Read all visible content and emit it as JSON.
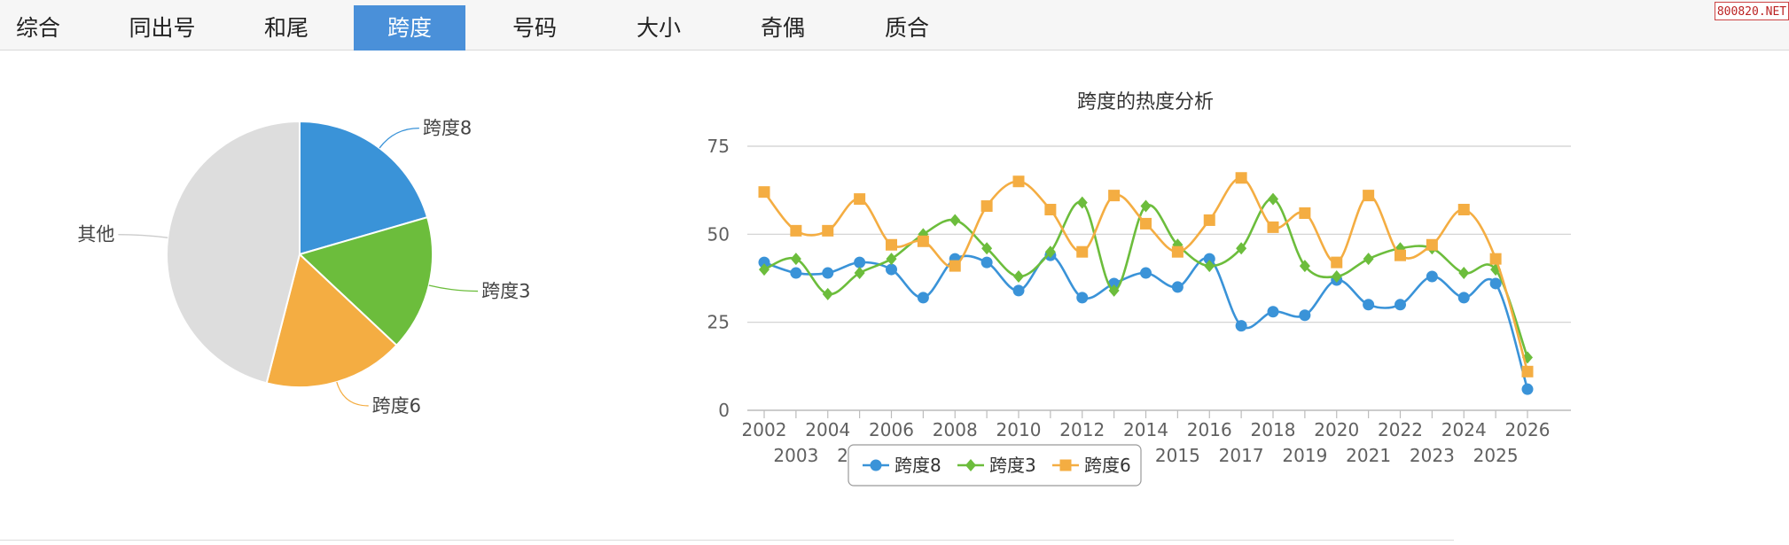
{
  "tabs": [
    {
      "label": "综合",
      "active": false
    },
    {
      "label": "同出号",
      "active": false
    },
    {
      "label": "和尾",
      "active": false
    },
    {
      "label": "跨度",
      "active": true
    },
    {
      "label": "号码",
      "active": false
    },
    {
      "label": "大小",
      "active": false
    },
    {
      "label": "奇偶",
      "active": false
    },
    {
      "label": "质合",
      "active": false
    }
  ],
  "watermark": "800820.NET",
  "colors": {
    "series1": "#3a93d8",
    "series2": "#6cbd3c",
    "series3": "#f4ad42",
    "other": "#dddddd",
    "tab_active": "#4a90d9"
  },
  "chart_data": [
    {
      "type": "pie",
      "slices": [
        {
          "label": "跨度8",
          "value": 20.5
        },
        {
          "label": "跨度3",
          "value": 16.5
        },
        {
          "label": "跨度6",
          "value": 17
        },
        {
          "label": "其他",
          "value": 46
        }
      ]
    },
    {
      "type": "line",
      "title": "跨度的热度分析",
      "x": [
        "2002",
        "2003",
        "2004",
        "2005",
        "2006",
        "2007",
        "2008",
        "2009",
        "2010",
        "2011",
        "2012",
        "2013",
        "2014",
        "2015",
        "2016",
        "2017",
        "2018",
        "2019",
        "2020",
        "2021",
        "2022",
        "2023",
        "2024",
        "2025",
        "2026"
      ],
      "y_ticks": [
        "0",
        "25",
        "50",
        "75"
      ],
      "ylim": [
        0,
        75
      ],
      "grid": true,
      "legend": "bottom-center",
      "series": [
        {
          "name": "跨度8",
          "marker": "circle",
          "values": [
            42,
            39,
            39,
            42,
            40,
            32,
            43,
            42,
            34,
            44,
            32,
            36,
            39,
            35,
            43,
            24,
            28,
            27,
            37,
            30,
            30,
            38,
            32,
            36,
            6
          ]
        },
        {
          "name": "跨度3",
          "marker": "diamond",
          "values": [
            40,
            43,
            33,
            39,
            43,
            50,
            54,
            46,
            38,
            45,
            59,
            34,
            58,
            47,
            41,
            46,
            60,
            41,
            38,
            43,
            46,
            46,
            39,
            40,
            15
          ]
        },
        {
          "name": "跨度6",
          "marker": "square",
          "values": [
            62,
            51,
            51,
            60,
            47,
            48,
            41,
            58,
            65,
            57,
            45,
            61,
            53,
            45,
            54,
            66,
            52,
            56,
            42,
            61,
            44,
            47,
            57,
            43,
            11
          ]
        }
      ]
    }
  ]
}
